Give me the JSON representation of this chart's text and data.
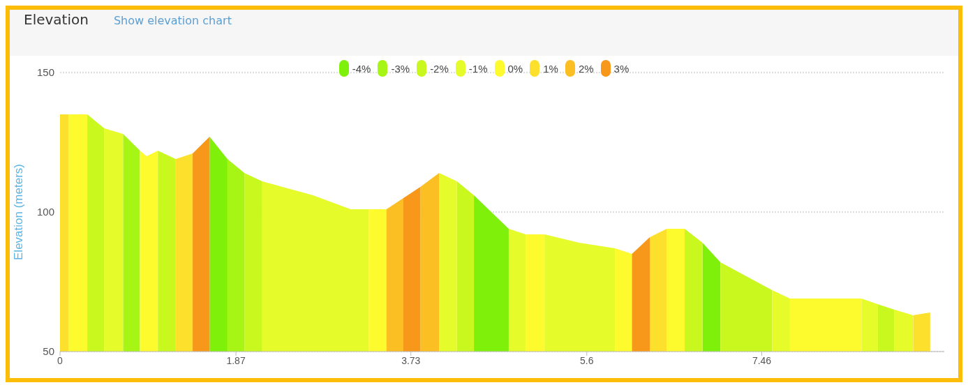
{
  "chart_data": {
    "type": "area",
    "title": "Elevation",
    "subtitle": "Show elevation chart",
    "ylabel": "Elevation (meters)",
    "xlim": [
      0,
      9.4
    ],
    "xticks": [
      0,
      1.87,
      3.73,
      5.6,
      7.46
    ],
    "ylim": [
      50,
      150
    ],
    "yticks": [
      50,
      100,
      150
    ],
    "grid": "y",
    "legend": "top",
    "series": [
      {
        "name": "-4%",
        "color": "#7ef00a",
        "x": [
          1.59,
          1.78,
          null,
          4.4,
          4.77,
          null,
          6.83,
          7.02
        ],
        "values": [
          127,
          119,
          null,
          106,
          94,
          null,
          89,
          82
        ]
      },
      {
        "name": "-3%",
        "color": "#a6f514",
        "x": [
          0.67,
          0.85,
          null,
          1.78,
          1.96
        ],
        "values": [
          128,
          122,
          null,
          119,
          114
        ]
      },
      {
        "name": "-2%",
        "color": "#c8f81e",
        "x": [
          0.29,
          0.47,
          null,
          1.04,
          1.23,
          null,
          1.96,
          2.15,
          null,
          4.22,
          4.4,
          null,
          6.64,
          6.83,
          null,
          7.02,
          7.57,
          null,
          8.69,
          8.87
        ],
        "values": [
          135,
          130,
          null,
          122,
          119,
          null,
          114,
          111,
          null,
          111,
          106,
          null,
          94,
          89,
          null,
          82,
          72,
          null,
          67,
          65
        ]
      },
      {
        "name": "-1%",
        "color": "#e6fb2a",
        "x": [
          0.47,
          0.67,
          null,
          2.15,
          2.69,
          3.09,
          3.28,
          null,
          4.03,
          4.22,
          null,
          4.77,
          4.95,
          null,
          5.15,
          5.52,
          5.9,
          null,
          7.57,
          7.76,
          null,
          8.52,
          8.69,
          null,
          8.87,
          9.07
        ],
        "values": [
          130,
          128,
          null,
          111,
          106,
          101,
          101,
          null,
          114,
          111,
          null,
          94,
          92,
          null,
          92,
          89,
          87,
          null,
          72,
          69,
          null,
          69,
          67,
          null,
          65,
          63
        ]
      },
      {
        "name": "0%",
        "color": "#fdfb2e",
        "x": [
          0.09,
          0.29,
          null,
          0.85,
          0.92,
          1.04,
          null,
          3.28,
          3.47,
          null,
          4.95,
          5.15,
          null,
          5.9,
          6.08,
          null,
          6.45,
          6.64,
          null,
          7.76,
          8.52
        ],
        "values": [
          135,
          135,
          null,
          122,
          120,
          122,
          null,
          101,
          101,
          null,
          92,
          92,
          null,
          87,
          85,
          null,
          94,
          94,
          null,
          69,
          69
        ]
      },
      {
        "name": "1%",
        "color": "#fde02c",
        "x": [
          0,
          0.09,
          null,
          1.23,
          1.41,
          null,
          6.27,
          6.45,
          null,
          9.07,
          9.25
        ],
        "values": [
          135,
          135,
          null,
          119,
          121,
          null,
          91,
          94,
          null,
          63,
          64
        ]
      },
      {
        "name": "2%",
        "color": "#fbbf24",
        "x": [
          3.47,
          3.65,
          null,
          3.83,
          4.03
        ],
        "values": [
          101,
          105,
          null,
          109,
          114
        ]
      },
      {
        "name": "3%",
        "color": "#f7981a",
        "x": [
          1.41,
          1.59,
          null,
          3.65,
          3.83,
          null,
          6.08,
          6.27
        ],
        "values": [
          121,
          127,
          null,
          105,
          109,
          null,
          85,
          91
        ]
      }
    ]
  }
}
